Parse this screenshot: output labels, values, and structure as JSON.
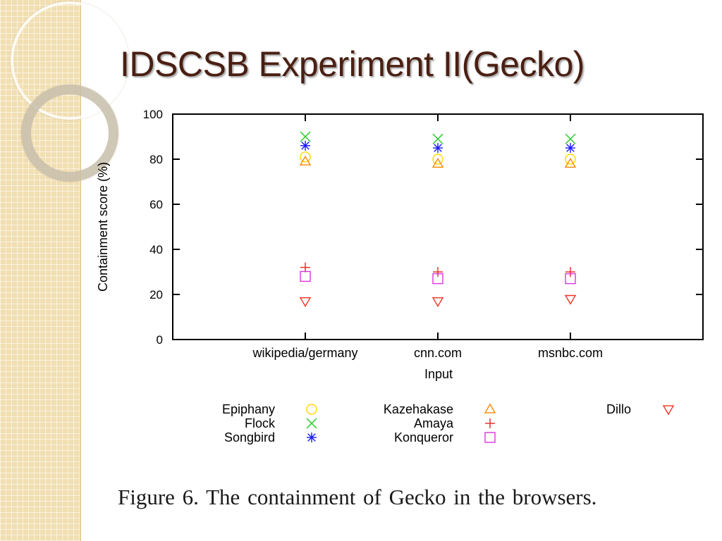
{
  "slide": {
    "title": "IDSCSB Experiment II(Gecko)",
    "caption": "Figure 6.   The containment of Gecko in the browsers."
  },
  "chart_data": {
    "type": "scatter",
    "categories": [
      "wikipedia/germany",
      "cnn.com",
      "msnbc.com"
    ],
    "xlabel": "Input",
    "ylabel": "Containment score (%)",
    "ylim": [
      0,
      100
    ],
    "yticks": [
      0,
      20,
      40,
      60,
      80,
      100
    ],
    "grid": false,
    "legend_position": "bottom",
    "series": [
      {
        "name": "Epiphany",
        "marker": "circle",
        "color": "#ffd700",
        "values": [
          81,
          80,
          80
        ]
      },
      {
        "name": "Flock",
        "marker": "x",
        "color": "#22cc22",
        "values": [
          90,
          89,
          89
        ]
      },
      {
        "name": "Songbird",
        "marker": "asterisk",
        "color": "#1a1aff",
        "values": [
          86,
          85,
          85
        ]
      },
      {
        "name": "Kazehakase",
        "marker": "triangle-up",
        "color": "#ff8800",
        "values": [
          79,
          78,
          78
        ]
      },
      {
        "name": "Amaya",
        "marker": "plus",
        "color": "#ee2222",
        "values": [
          32,
          30,
          30
        ]
      },
      {
        "name": "Konqueror",
        "marker": "square",
        "color": "#dd33dd",
        "values": [
          28,
          27,
          27
        ]
      },
      {
        "name": "Dillo",
        "marker": "triangle-down",
        "color": "#ee3322",
        "values": [
          17,
          17,
          18
        ]
      }
    ]
  }
}
